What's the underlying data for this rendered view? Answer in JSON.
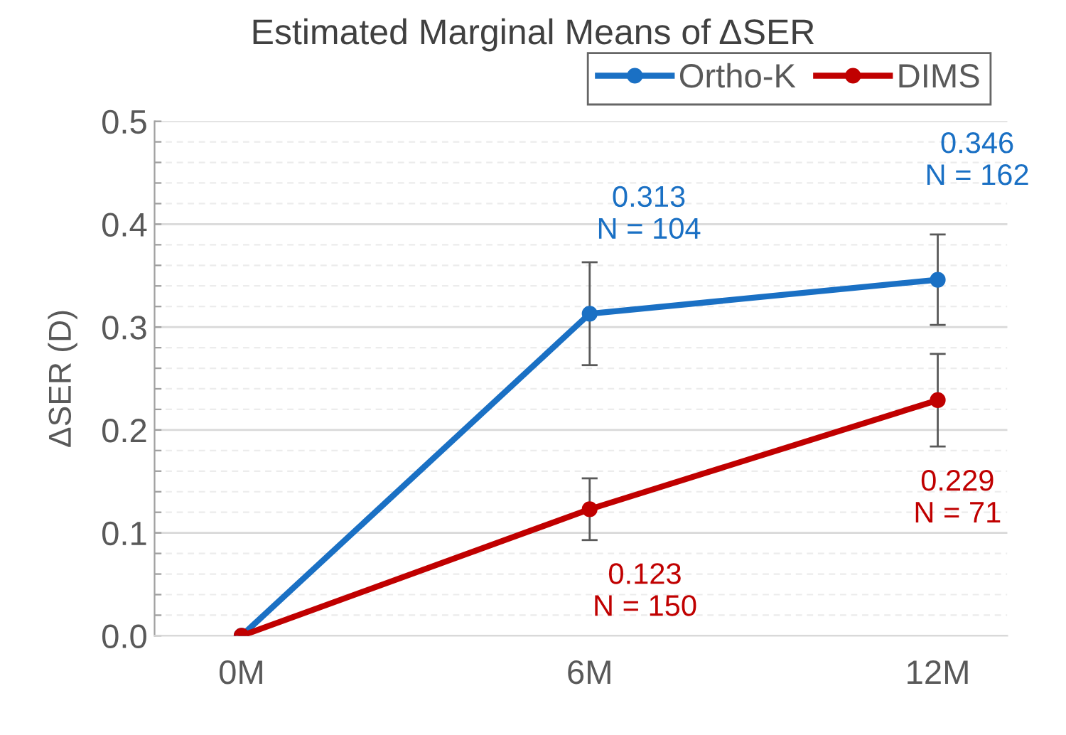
{
  "chart_data": {
    "type": "line",
    "title": "Estimated Marginal Means of ΔSER",
    "ylabel": "ΔSER (D)",
    "categories": [
      "0M",
      "6M",
      "12M"
    ],
    "series": [
      {
        "name": "Ortho-K",
        "color": "#1a70c4",
        "values": [
          0,
          0.313,
          0.346
        ],
        "errors": [
          null,
          0.05,
          0.044
        ],
        "value_labels": [
          null,
          "0.313\nN = 104",
          "0.346\nN = 162"
        ]
      },
      {
        "name": "DIMS",
        "color": "#c00000",
        "values": [
          0,
          0.123,
          0.229
        ],
        "errors": [
          null,
          0.03,
          0.045
        ],
        "value_labels": [
          null,
          "0.123\nN = 150",
          "0.229\nN = 71"
        ]
      }
    ],
    "ylim": [
      0,
      0.5
    ],
    "yticks": [
      {
        "value": 0,
        "label": "0.0"
      },
      {
        "value": 0.02,
        "label": null
      },
      {
        "value": 0.04,
        "label": null
      },
      {
        "value": 0.06,
        "label": null
      },
      {
        "value": 0.08,
        "label": null
      },
      {
        "value": 0.1,
        "label": "0.1"
      },
      {
        "value": 0.12,
        "label": null
      },
      {
        "value": 0.14,
        "label": null
      },
      {
        "value": 0.16,
        "label": null
      },
      {
        "value": 0.18,
        "label": null
      },
      {
        "value": 0.2,
        "label": "0.2"
      },
      {
        "value": 0.22,
        "label": null
      },
      {
        "value": 0.24,
        "label": null
      },
      {
        "value": 0.26,
        "label": null
      },
      {
        "value": 0.28,
        "label": null
      },
      {
        "value": 0.3,
        "label": "0.3"
      },
      {
        "value": 0.32,
        "label": null
      },
      {
        "value": 0.34,
        "label": null
      },
      {
        "value": 0.36,
        "label": null
      },
      {
        "value": 0.38,
        "label": null
      },
      {
        "value": 0.4,
        "label": "0.4"
      },
      {
        "value": 0.42,
        "label": null
      },
      {
        "value": 0.44,
        "label": null
      },
      {
        "value": 0.46,
        "label": null
      },
      {
        "value": 0.48,
        "label": null
      },
      {
        "value": 0.5,
        "label": "0.5"
      }
    ],
    "grid": "y",
    "legend": "top right",
    "marker": "circle",
    "line_style": "solid"
  }
}
